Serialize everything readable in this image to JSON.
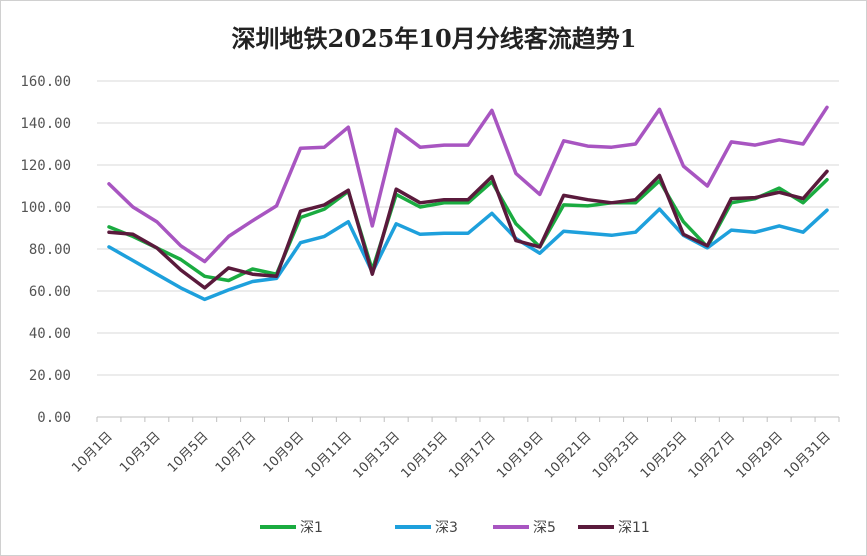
{
  "chart_data": {
    "type": "line",
    "title": "深圳地铁2025年10月分线客流趋势1",
    "xlabel": "",
    "ylabel": "",
    "ylim": [
      0,
      160
    ],
    "yticks": [
      "0.00",
      "20.00",
      "40.00",
      "60.00",
      "80.00",
      "100.00",
      "120.00",
      "140.00",
      "160.00"
    ],
    "categories": [
      "10月1日",
      "10月2日",
      "10月3日",
      "10月4日",
      "10月5日",
      "10月6日",
      "10月7日",
      "10月8日",
      "10月9日",
      "10月10日",
      "10月11日",
      "10月12日",
      "10月13日",
      "10月14日",
      "10月15日",
      "10月16日",
      "10月17日",
      "10月18日",
      "10月19日",
      "10月20日",
      "10月21日",
      "10月22日",
      "10月23日",
      "10月24日",
      "10月25日",
      "10月26日",
      "10月27日",
      "10月28日",
      "10月29日",
      "10月30日",
      "10月31日"
    ],
    "x_tick_labels_shown": [
      "10月1日",
      "10月3日",
      "10月5日",
      "10月7日",
      "10月9日",
      "10月11日",
      "10月13日",
      "10月15日",
      "10月17日",
      "10月19日",
      "10月21日",
      "10月23日",
      "10月25日",
      "10月27日",
      "10月29日",
      "10月31日"
    ],
    "grid": true,
    "legend_position": "bottom",
    "series": [
      {
        "name": "深1",
        "color": "#1aab40",
        "values": [
          90.5,
          86,
          80.5,
          75,
          67,
          65,
          70.5,
          68,
          95,
          99,
          107.5,
          70,
          106,
          100,
          102,
          102,
          112,
          92,
          81,
          101,
          100.5,
          102,
          102,
          112.5,
          93,
          81,
          102,
          104,
          109,
          102,
          113
        ]
      },
      {
        "name": "深3",
        "color": "#1ea0dc",
        "values": [
          81,
          74.5,
          68,
          61.5,
          56,
          60.5,
          64.5,
          66,
          83,
          86,
          93,
          69,
          92,
          87,
          87.5,
          87.5,
          97,
          85,
          78,
          88.5,
          87.5,
          86.5,
          88,
          99,
          86.5,
          80.5,
          89,
          88,
          91,
          88,
          98.5
        ]
      },
      {
        "name": "深5",
        "color": "#a855c1",
        "values": [
          111,
          100,
          93,
          81.5,
          74,
          86,
          93.5,
          100.5,
          128,
          128.5,
          138,
          91,
          137,
          128.5,
          129.5,
          129.5,
          146,
          116,
          106,
          131.5,
          129,
          128.5,
          130,
          146.5,
          119.5,
          110,
          131,
          129.5,
          132,
          130,
          147.5
        ]
      },
      {
        "name": "深11",
        "color": "#5a1a3c",
        "values": [
          88,
          87,
          80.5,
          70,
          61.5,
          71,
          68,
          67,
          98,
          101,
          108,
          68,
          108.5,
          102,
          103.5,
          103.5,
          114.5,
          84,
          81,
          105.5,
          103.5,
          102,
          103.5,
          115,
          87,
          81.5,
          104,
          104.5,
          107,
          104,
          117
        ]
      }
    ]
  }
}
